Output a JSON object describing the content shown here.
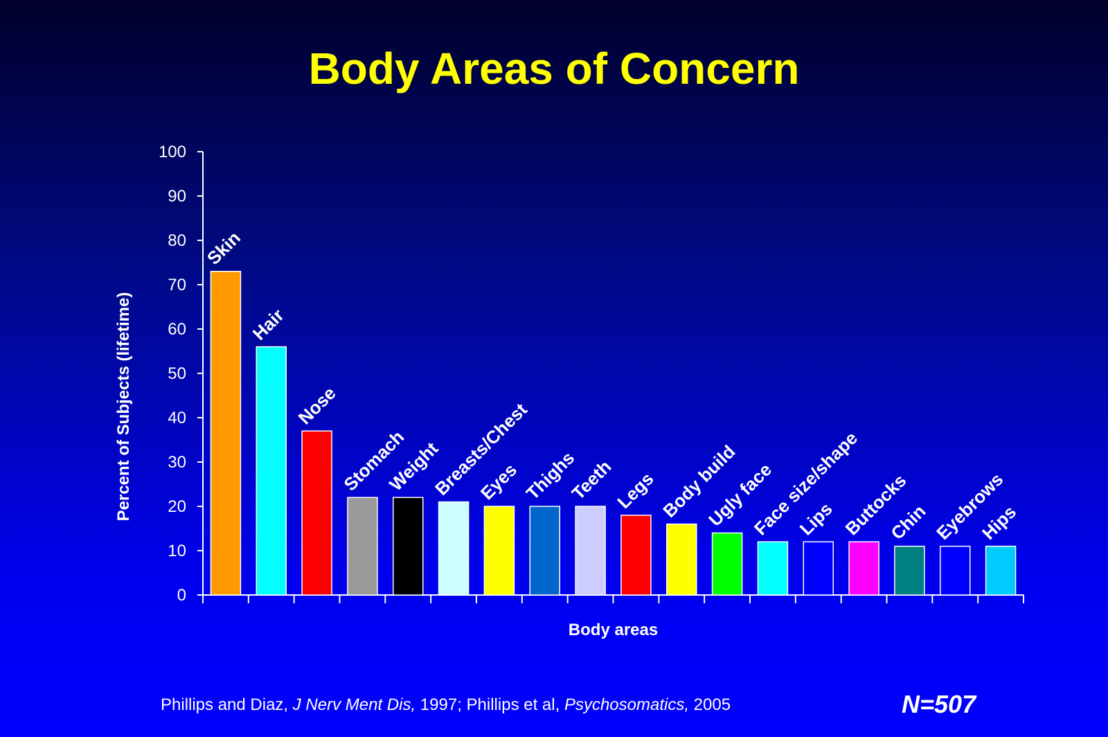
{
  "slide": {
    "title": "Body Areas of Concern",
    "citation": {
      "part1": "Phillips and Diaz, ",
      "journal1": "J Nerv Ment Dis,",
      "part2": " 1997; Phillips et al, ",
      "journal2": "Psychosomatics,",
      "part3": " 2005"
    },
    "sample_size": "N=507"
  },
  "colors": {
    "title": "#ffff00",
    "text": "#ffffff",
    "background_top": "#00002a",
    "background_bottom": "#0000ff"
  },
  "chart_data": {
    "type": "bar",
    "title": "Body Areas of Concern",
    "xlabel": "Body areas",
    "ylabel": "Percent of Subjects (lifetime)",
    "ylim": [
      0,
      100
    ],
    "yticks": [
      0,
      10,
      20,
      30,
      40,
      50,
      60,
      70,
      80,
      90,
      100
    ],
    "grid": false,
    "legend": "none",
    "categories": [
      "Skin",
      "Hair",
      "Nose",
      "Stomach",
      "Weight",
      "Breasts/Chest",
      "Eyes",
      "Thighs",
      "Teeth",
      "Legs",
      "Body build",
      "Ugly face",
      "Face size/shape",
      "Lips",
      "Buttocks",
      "Chin",
      "Eyebrows",
      "Hips"
    ],
    "values": [
      73,
      56,
      37,
      22,
      22,
      21,
      20,
      20,
      20,
      18,
      16,
      14,
      12,
      12,
      12,
      11,
      11,
      11
    ],
    "bar_colors": [
      "#ff9900",
      "#00ffff",
      "#ff0000",
      "#999999",
      "#000000",
      "#ccffff",
      "#ffff00",
      "#0066cc",
      "#ccccff",
      "#ff0000",
      "#ffff00",
      "#00ff00",
      "#00ffff",
      "#0000ff",
      "#ff00ff",
      "#008080",
      "#0000ff",
      "#00ccff"
    ]
  }
}
